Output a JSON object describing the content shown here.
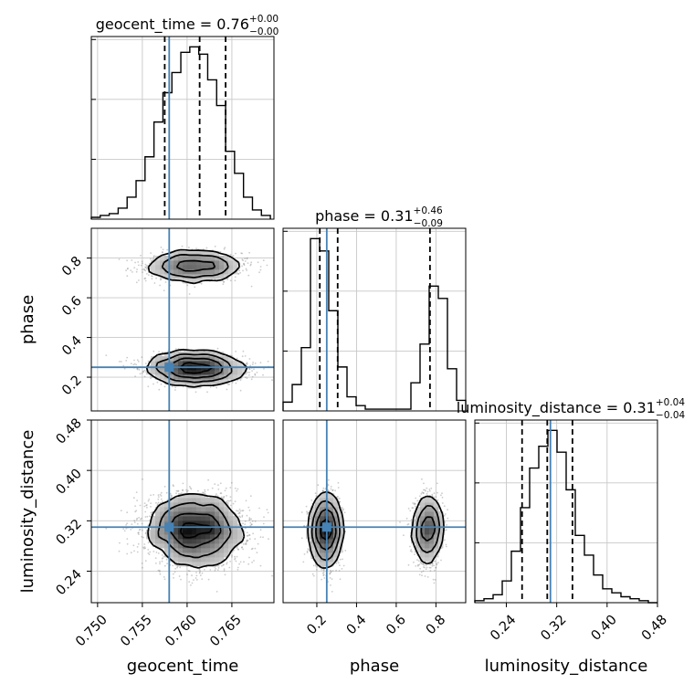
{
  "chart_data": {
    "type": "corner",
    "parameters": [
      "geocent_time",
      "phase",
      "luminosity_distance"
    ],
    "truth_color": "#4682b4",
    "truths": {
      "geocent_time": 0.758,
      "phase": 0.25,
      "luminosity_distance": 0.31
    },
    "ranges": {
      "geocent_time": [
        0.7493,
        0.7697
      ],
      "phase": [
        0.03,
        0.95
      ],
      "luminosity_distance": [
        0.19,
        0.48
      ]
    },
    "ticks": {
      "geocent_time": [
        {
          "v": 0.75,
          "label": "0.750"
        },
        {
          "v": 0.755,
          "label": "0.755"
        },
        {
          "v": 0.76,
          "label": "0.760"
        },
        {
          "v": 0.765,
          "label": "0.765"
        }
      ],
      "phase": [
        {
          "v": 0.2,
          "label": "0.2"
        },
        {
          "v": 0.4,
          "label": "0.4"
        },
        {
          "v": 0.6,
          "label": "0.6"
        },
        {
          "v": 0.8,
          "label": "0.8"
        }
      ],
      "luminosity_distance": [
        {
          "v": 0.24,
          "label": "0.24"
        },
        {
          "v": 0.32,
          "label": "0.32"
        },
        {
          "v": 0.4,
          "label": "0.40"
        },
        {
          "v": 0.48,
          "label": "0.48"
        }
      ]
    },
    "titles": {
      "geocent_time": {
        "main": "geocent_time = 0.76",
        "plus": "+0.00",
        "minus": "−0.00"
      },
      "phase": {
        "main": "phase = 0.31",
        "plus": "+0.46",
        "minus": "−0.09"
      },
      "luminosity_distance": {
        "main": "luminosity_distance = 0.31",
        "plus": "+0.04",
        "minus": "−0.04"
      }
    },
    "quantiles": {
      "geocent_time": [
        0.7575,
        0.7614,
        0.7643
      ],
      "phase": [
        0.215,
        0.305,
        0.77
      ],
      "luminosity_distance": [
        0.265,
        0.305,
        0.345
      ]
    },
    "histograms": {
      "geocent_time": {
        "edges": [
          0.7493,
          0.7503,
          0.7513,
          0.7523,
          0.7533,
          0.7543,
          0.7553,
          0.7563,
          0.7573,
          0.7583,
          0.7593,
          0.7603,
          0.7613,
          0.7623,
          0.7633,
          0.7643,
          0.7653,
          0.7663,
          0.7673,
          0.7683,
          0.7693
        ],
        "counts": [
          1,
          2,
          3,
          6,
          12,
          21,
          34,
          53,
          69,
          80,
          91,
          94,
          90,
          76,
          62,
          37,
          25,
          12,
          5,
          2
        ]
      },
      "phase": {
        "edges": [
          0.03,
          0.076,
          0.122,
          0.168,
          0.214,
          0.26,
          0.306,
          0.352,
          0.398,
          0.444,
          0.49,
          0.536,
          0.582,
          0.628,
          0.674,
          0.72,
          0.766,
          0.812,
          0.858,
          0.904,
          0.95
        ],
        "counts": [
          5,
          15,
          36,
          98,
          91,
          57,
          25,
          8,
          3,
          1,
          1,
          1,
          1,
          1,
          16,
          38,
          71,
          64,
          24,
          6
        ]
      },
      "luminosity_distance": {
        "edges": [
          0.19,
          0.2045,
          0.219,
          0.2335,
          0.248,
          0.2625,
          0.277,
          0.2915,
          0.306,
          0.3205,
          0.335,
          0.3495,
          0.364,
          0.3785,
          0.393,
          0.4075,
          0.422,
          0.4365,
          0.451,
          0.4655,
          0.48
        ],
        "counts": [
          1,
          2,
          4,
          11,
          26,
          48,
          68,
          79,
          87,
          76,
          57,
          34,
          24,
          14,
          7,
          5,
          3,
          2,
          1,
          0
        ]
      }
    },
    "modes": {
      "geocent_time": [
        {
          "mean": 0.761,
          "sd": 0.0026
        }
      ],
      "phase": [
        {
          "mean": 0.245,
          "sd": 0.035,
          "weight": 0.6
        },
        {
          "mean": 0.76,
          "sd": 0.035,
          "weight": 0.4
        }
      ],
      "luminosity_distance": [
        {
          "mean": 0.305,
          "sd": 0.027
        }
      ]
    }
  }
}
